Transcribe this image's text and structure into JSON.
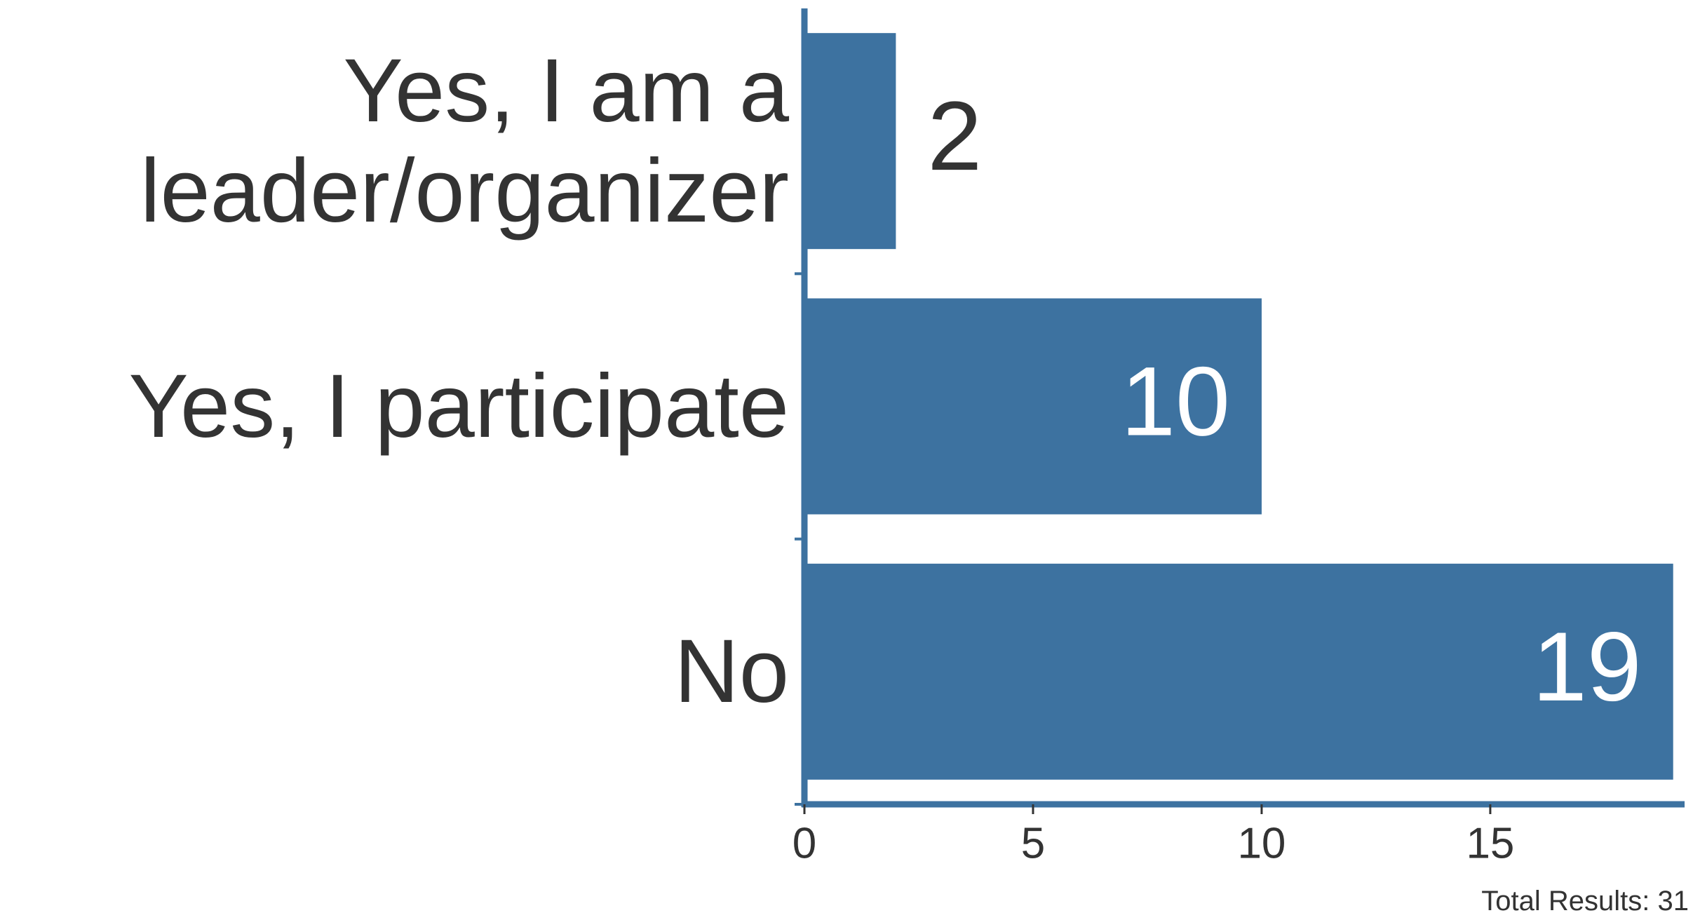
{
  "chart_data": {
    "type": "bar",
    "orientation": "horizontal",
    "categories": [
      "Yes, I am a leader/organizer",
      "Yes, I participate",
      "No"
    ],
    "values": [
      2,
      10,
      19
    ],
    "color": "#3d72a0",
    "xlim": [
      0,
      19.25
    ],
    "xticks": [
      0,
      5,
      10,
      15
    ],
    "footnote": "Total Results: 31"
  }
}
